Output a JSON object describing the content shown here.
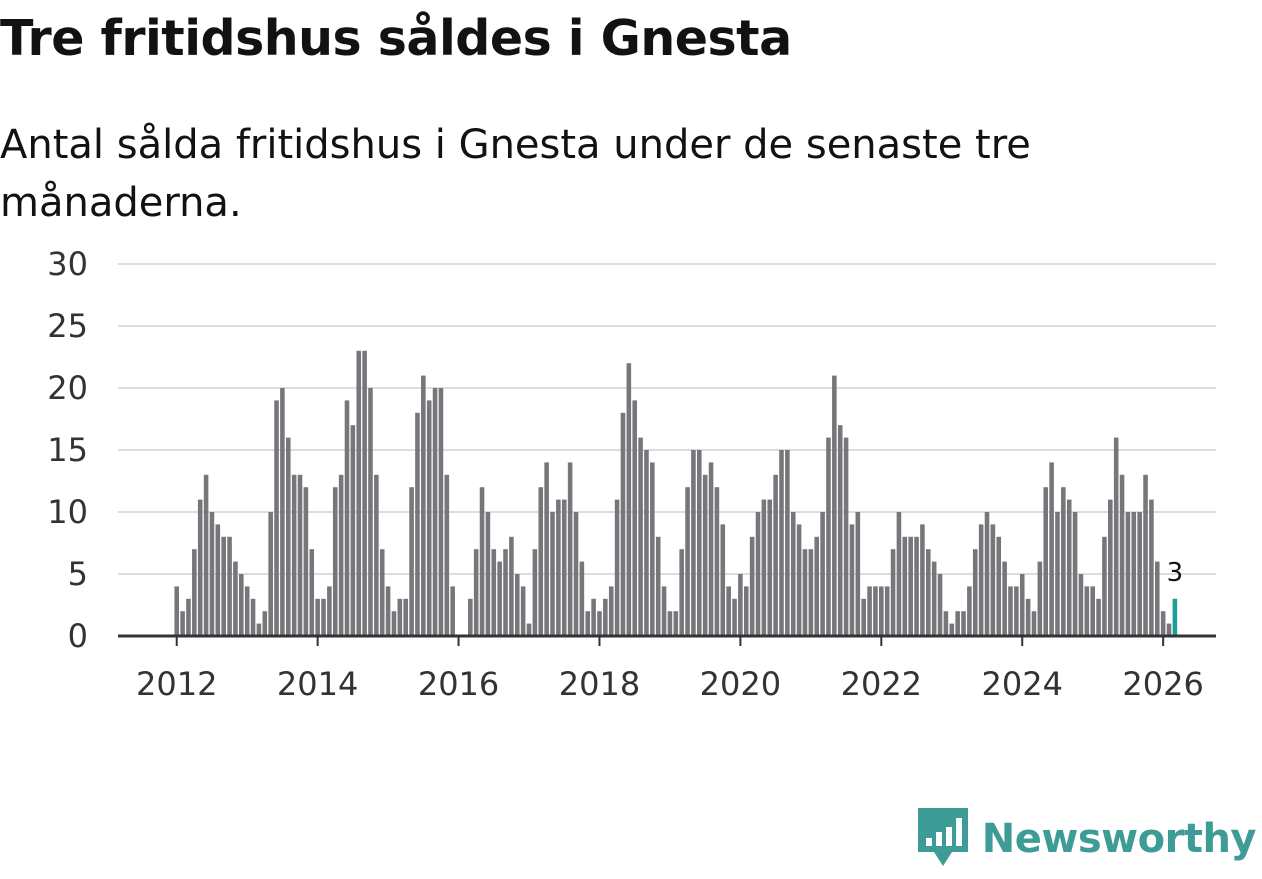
{
  "header": {
    "title": "Tre fritidshus såldes i Gnesta",
    "subtitle": "Antal sålda fritidshus i Gnesta under de senaste tre månaderna."
  },
  "colors": {
    "bar": "#77767b",
    "highlight": "#1a9e96",
    "grid": "#dddddd",
    "axis": "#333333",
    "brand": "#3d9c95"
  },
  "brand": {
    "name": "Newsworthy",
    "icon": "newsworthy-logo-icon"
  },
  "chart_data": {
    "type": "bar",
    "title": "Tre fritidshus såldes i Gnesta",
    "subtitle": "Antal sålda fritidshus i Gnesta under de senaste tre månaderna.",
    "xlabel": "",
    "ylabel": "",
    "ylim": [
      0,
      30
    ],
    "yticks": [
      0,
      5,
      10,
      15,
      20,
      25,
      30
    ],
    "xticks": [
      "2012",
      "2014",
      "2016",
      "2018",
      "2020",
      "2022",
      "2024",
      "2026"
    ],
    "x_range": [
      "2011-03",
      "2026-10"
    ],
    "grid": true,
    "legend": "none",
    "highlight_annotation": "3",
    "start_month": "2012-01",
    "values": [
      4,
      2,
      3,
      7,
      11,
      13,
      10,
      9,
      8,
      8,
      6,
      5,
      4,
      3,
      1,
      2,
      10,
      19,
      20,
      16,
      13,
      13,
      12,
      7,
      3,
      3,
      4,
      12,
      13,
      19,
      17,
      23,
      23,
      20,
      13,
      7,
      4,
      2,
      3,
      3,
      12,
      18,
      21,
      19,
      20,
      20,
      13,
      4,
      0,
      0,
      3,
      7,
      12,
      10,
      7,
      6,
      7,
      8,
      5,
      4,
      1,
      7,
      12,
      14,
      10,
      11,
      11,
      14,
      10,
      6,
      2,
      3,
      2,
      3,
      4,
      11,
      18,
      22,
      19,
      16,
      15,
      14,
      8,
      4,
      2,
      2,
      7,
      12,
      15,
      15,
      13,
      14,
      12,
      9,
      4,
      3,
      5,
      4,
      8,
      10,
      11,
      11,
      13,
      15,
      15,
      10,
      9,
      7,
      7,
      8,
      10,
      16,
      21,
      17,
      16,
      9,
      10,
      3,
      4,
      4,
      4,
      4,
      7,
      10,
      8,
      8,
      8,
      9,
      7,
      6,
      5,
      2,
      1,
      2,
      2,
      4,
      7,
      9,
      10,
      9,
      8,
      6,
      4,
      4,
      5,
      3,
      2,
      6,
      12,
      14,
      10,
      12,
      11,
      10,
      5,
      4,
      4,
      3,
      8,
      11,
      16,
      13,
      10,
      10,
      10,
      13,
      11,
      6,
      2,
      1,
      3
    ],
    "highlight_last": 1
  }
}
